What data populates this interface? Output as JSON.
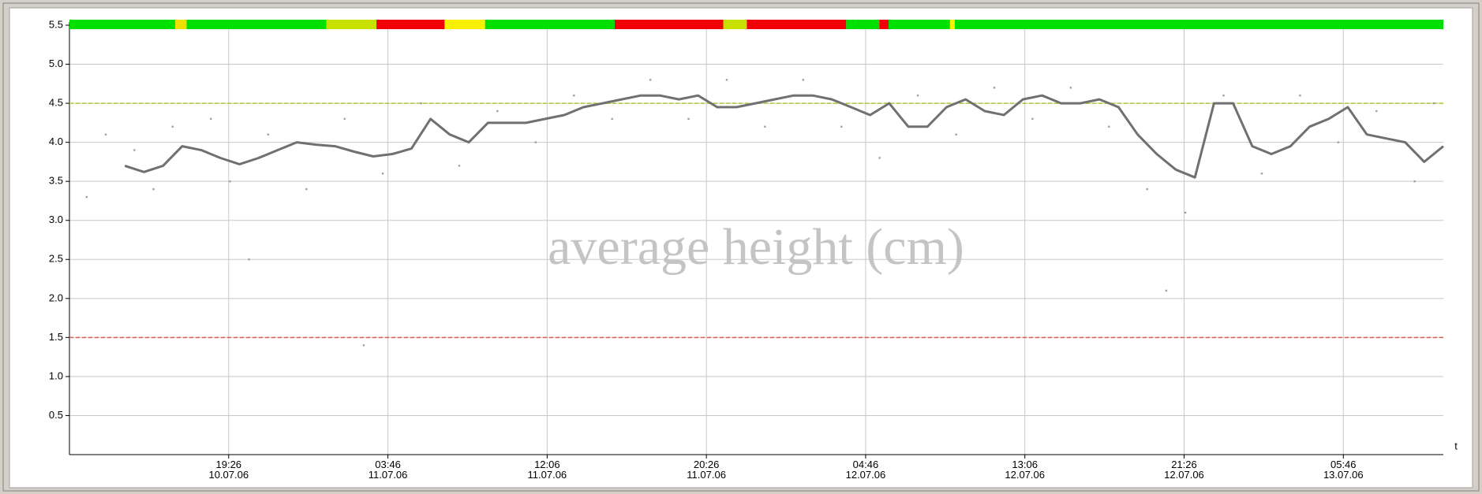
{
  "chart_data": {
    "type": "line",
    "title": "average height (cm)",
    "x_label": "t",
    "xlim": [
      "2006-07-10 11:06",
      "2006-07-13 11:00"
    ],
    "xticks": [
      {
        "value": "2006-07-10 19:26",
        "label": "19:26\n10.07.06"
      },
      {
        "value": "2006-07-11 03:46",
        "label": "03:46\n11.07.06"
      },
      {
        "value": "2006-07-11 12:06",
        "label": "12:06\n11.07.06"
      },
      {
        "value": "2006-07-11 20:26",
        "label": "20:26\n11.07.06"
      },
      {
        "value": "2006-07-12 04:46",
        "label": "04:46\n12.07.06"
      },
      {
        "value": "2006-07-12 13:06",
        "label": "13:06\n12.07.06"
      },
      {
        "value": "2006-07-12 21:26",
        "label": "21:26\n12.07.06"
      },
      {
        "value": "2006-07-13 05:46",
        "label": "05:46\n13.07.06"
      }
    ],
    "ylim": [
      0,
      5.5
    ],
    "yticks": [
      0.5,
      {
        "value": 1,
        "label": "1.0"
      },
      1.5,
      {
        "value": 2,
        "label": "2.0"
      },
      2.5,
      {
        "value": 3,
        "label": "3.0"
      },
      3.5,
      {
        "value": 4,
        "label": "4.0"
      },
      4.5,
      {
        "value": 5,
        "label": "5.0"
      },
      5.5
    ],
    "grid": true,
    "reference_lines": [
      {
        "value": 4.5,
        "color": "#a8c83c"
      },
      {
        "value": 1.5,
        "color": "#d06050"
      }
    ],
    "series": [
      {
        "type": "scatter",
        "color": "#a0a0a0",
        "x": [
          "2006-07-10 12:00",
          "2006-07-10 13:00",
          "2006-07-10 14:30",
          "2006-07-10 15:30",
          "2006-07-10 16:30",
          "2006-07-10 18:30",
          "2006-07-10 19:30",
          "2006-07-10 20:30",
          "2006-07-10 21:30",
          "2006-07-10 23:30",
          "2006-07-11 01:30",
          "2006-07-11 02:30",
          "2006-07-11 03:30",
          "2006-07-11 05:30",
          "2006-07-11 07:30",
          "2006-07-11 09:30",
          "2006-07-11 11:30",
          "2006-07-11 13:30",
          "2006-07-11 15:30",
          "2006-07-11 17:30",
          "2006-07-11 19:30",
          "2006-07-11 21:30",
          "2006-07-11 23:30",
          "2006-07-12 01:30",
          "2006-07-12 03:30",
          "2006-07-12 05:30",
          "2006-07-12 07:30",
          "2006-07-12 09:30",
          "2006-07-12 11:30",
          "2006-07-12 13:30",
          "2006-07-12 15:30",
          "2006-07-12 17:30",
          "2006-07-12 19:30",
          "2006-07-12 20:30",
          "2006-07-12 21:30",
          "2006-07-12 23:30",
          "2006-07-13 01:30",
          "2006-07-13 03:30",
          "2006-07-13 05:30",
          "2006-07-13 07:30",
          "2006-07-13 09:30",
          "2006-07-13 10:30"
        ],
        "values": [
          3.3,
          4.1,
          3.9,
          3.4,
          4.2,
          4.3,
          3.5,
          2.5,
          4.1,
          3.4,
          4.3,
          1.4,
          3.6,
          4.5,
          3.7,
          4.4,
          4.0,
          4.6,
          4.3,
          4.8,
          4.3,
          4.8,
          4.2,
          4.8,
          4.2,
          3.8,
          4.6,
          4.1,
          4.7,
          4.3,
          4.7,
          4.2,
          3.4,
          2.1,
          3.1,
          4.6,
          3.6,
          4.6,
          4.0,
          4.4,
          3.5,
          4.5
        ]
      },
      {
        "type": "line",
        "color": "#707070",
        "x": [
          "2006-07-10 14:00",
          "2006-07-10 15:00",
          "2006-07-10 16:00",
          "2006-07-10 17:00",
          "2006-07-10 18:00",
          "2006-07-10 19:00",
          "2006-07-10 20:00",
          "2006-07-10 21:00",
          "2006-07-10 22:00",
          "2006-07-10 23:00",
          "2006-07-11 00:00",
          "2006-07-11 01:00",
          "2006-07-11 02:00",
          "2006-07-11 03:00",
          "2006-07-11 04:00",
          "2006-07-11 05:00",
          "2006-07-11 06:00",
          "2006-07-11 07:00",
          "2006-07-11 08:00",
          "2006-07-11 09:00",
          "2006-07-11 10:00",
          "2006-07-11 11:00",
          "2006-07-11 12:00",
          "2006-07-11 13:00",
          "2006-07-11 14:00",
          "2006-07-11 15:00",
          "2006-07-11 16:00",
          "2006-07-11 17:00",
          "2006-07-11 18:00",
          "2006-07-11 19:00",
          "2006-07-11 20:00",
          "2006-07-11 21:00",
          "2006-07-11 22:00",
          "2006-07-11 23:00",
          "2006-07-12 00:00",
          "2006-07-12 01:00",
          "2006-07-12 02:00",
          "2006-07-12 03:00",
          "2006-07-12 04:00",
          "2006-07-12 05:00",
          "2006-07-12 06:00",
          "2006-07-12 07:00",
          "2006-07-12 08:00",
          "2006-07-12 09:00",
          "2006-07-12 10:00",
          "2006-07-12 11:00",
          "2006-07-12 12:00",
          "2006-07-12 13:00",
          "2006-07-12 14:00",
          "2006-07-12 15:00",
          "2006-07-12 16:00",
          "2006-07-12 17:00",
          "2006-07-12 18:00",
          "2006-07-12 19:00",
          "2006-07-12 20:00",
          "2006-07-12 21:00",
          "2006-07-12 22:00",
          "2006-07-12 23:00",
          "2006-07-13 00:00",
          "2006-07-13 01:00",
          "2006-07-13 02:00",
          "2006-07-13 03:00",
          "2006-07-13 04:00",
          "2006-07-13 05:00",
          "2006-07-13 06:00",
          "2006-07-13 07:00",
          "2006-07-13 08:00",
          "2006-07-13 09:00",
          "2006-07-13 10:00",
          "2006-07-13 11:00"
        ],
        "values": [
          3.7,
          3.62,
          3.7,
          3.95,
          3.9,
          3.8,
          3.72,
          3.8,
          3.9,
          4.0,
          3.97,
          3.95,
          3.88,
          3.82,
          3.85,
          3.92,
          4.3,
          4.1,
          4.0,
          4.25,
          4.25,
          4.25,
          4.3,
          4.35,
          4.45,
          4.5,
          4.55,
          4.6,
          4.6,
          4.55,
          4.6,
          4.45,
          4.45,
          4.5,
          4.55,
          4.6,
          4.6,
          4.55,
          4.45,
          4.35,
          4.5,
          4.2,
          4.2,
          4.45,
          4.55,
          4.4,
          4.35,
          4.55,
          4.6,
          4.5,
          4.5,
          4.55,
          4.45,
          4.1,
          3.85,
          3.65,
          3.55,
          4.5,
          4.5,
          3.95,
          3.85,
          3.95,
          4.2,
          4.3,
          4.45,
          4.1,
          4.05,
          4.0,
          3.75,
          3.95
        ]
      }
    ],
    "status_bar": [
      {
        "start": "2006-07-10 11:06",
        "end": "2006-07-10 16:38",
        "color": "#00e000"
      },
      {
        "start": "2006-07-10 16:38",
        "end": "2006-07-10 17:14",
        "color": "#f0e000"
      },
      {
        "start": "2006-07-10 17:14",
        "end": "2006-07-11 00:33",
        "color": "#00e000"
      },
      {
        "start": "2006-07-11 00:33",
        "end": "2006-07-11 03:10",
        "color": "#c8e000"
      },
      {
        "start": "2006-07-11 03:10",
        "end": "2006-07-11 06:44",
        "color": "#f00000"
      },
      {
        "start": "2006-07-11 06:44",
        "end": "2006-07-11 08:51",
        "color": "#f8f000"
      },
      {
        "start": "2006-07-11 08:51",
        "end": "2006-07-11 15:38",
        "color": "#00e000"
      },
      {
        "start": "2006-07-11 15:38",
        "end": "2006-07-11 21:19",
        "color": "#f00000"
      },
      {
        "start": "2006-07-11 21:19",
        "end": "2006-07-11 22:33",
        "color": "#c8e000"
      },
      {
        "start": "2006-07-11 22:33",
        "end": "2006-07-12 03:45",
        "color": "#f00000"
      },
      {
        "start": "2006-07-12 03:45",
        "end": "2006-07-12 05:29",
        "color": "#00e000"
      },
      {
        "start": "2006-07-12 05:29",
        "end": "2006-07-12 05:58",
        "color": "#f00000"
      },
      {
        "start": "2006-07-12 05:58",
        "end": "2006-07-12 09:11",
        "color": "#00e000"
      },
      {
        "start": "2006-07-12 09:11",
        "end": "2006-07-12 09:26",
        "color": "#f8f000"
      },
      {
        "start": "2006-07-12 09:26",
        "end": "2006-07-13 11:00",
        "color": "#00e000"
      }
    ]
  }
}
